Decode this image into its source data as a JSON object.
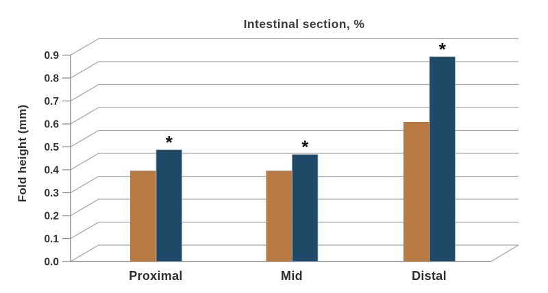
{
  "chart_data": {
    "type": "bar",
    "style": "pseudo-3d-grouped-bars",
    "title": "Intestinal section, %",
    "xlabel": "",
    "ylabel": "Fold height (mm)",
    "categories": [
      "Proximal",
      "Mid",
      "Distal"
    ],
    "series": [
      {
        "name": "orange",
        "color_key": "orange_bar",
        "values": [
          0.39,
          0.39,
          0.6
        ]
      },
      {
        "name": "blue",
        "color_key": "blue_bar",
        "values": [
          0.48,
          0.46,
          0.88
        ]
      }
    ],
    "significance_markers": {
      "marker": "*",
      "series": "blue",
      "categories": [
        "Proximal",
        "Mid",
        "Distal"
      ]
    },
    "ylim": [
      0.0,
      0.9
    ],
    "ytick_step": 0.1,
    "ytick_labels": [
      "0.0",
      "0.1",
      "0.2",
      "0.3",
      "0.4",
      "0.5",
      "0.6",
      "0.7",
      "0.8",
      "0.9"
    ],
    "grid": true,
    "legend_position": "none"
  },
  "colors": {
    "background": "#ffffff",
    "orange_bar": "#b97a43",
    "blue_bar": "#1e4a68",
    "blue_bar_edge": "#8fafc6",
    "gridline": "#a6a6a6",
    "axis": "#8c8c8c",
    "tick_text": "#333333",
    "title_text": "#3b3b3b",
    "annotation": "#111111"
  }
}
